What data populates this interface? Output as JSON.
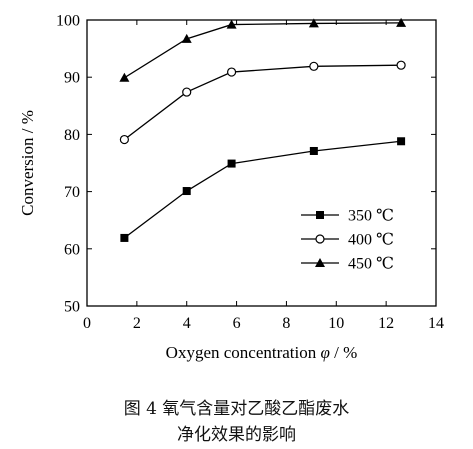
{
  "chart_data": {
    "type": "line",
    "xlabel_prefix": "Oxygen concentration ",
    "xlabel_symbol": "φ",
    "xlabel_unit": " / %",
    "ylabel": "Conversion / %",
    "xlim": [
      0,
      14
    ],
    "ylim": [
      50,
      100
    ],
    "xticks": [
      0,
      2,
      4,
      6,
      8,
      10,
      12,
      14
    ],
    "yticks": [
      50,
      60,
      70,
      80,
      90,
      100
    ],
    "grid": false,
    "legend_position": "center-right",
    "series": [
      {
        "name": "350 ℃",
        "marker": "square-filled",
        "x": [
          1.5,
          4.0,
          5.8,
          9.1,
          12.6
        ],
        "y": [
          61.9,
          70.1,
          74.9,
          77.1,
          78.8
        ]
      },
      {
        "name": "400 ℃",
        "marker": "circle-open",
        "x": [
          1.5,
          4.0,
          5.8,
          9.1,
          12.6
        ],
        "y": [
          79.1,
          87.4,
          90.9,
          91.9,
          92.1
        ]
      },
      {
        "name": "450 ℃",
        "marker": "triangle-filled",
        "x": [
          1.5,
          4.0,
          5.8,
          9.1,
          12.6
        ],
        "y": [
          89.9,
          96.7,
          99.2,
          99.4,
          99.5
        ]
      }
    ]
  },
  "caption": {
    "line1": "图 4   氧气含量对乙酸乙酯废水",
    "line2": "净化效果的影响"
  }
}
